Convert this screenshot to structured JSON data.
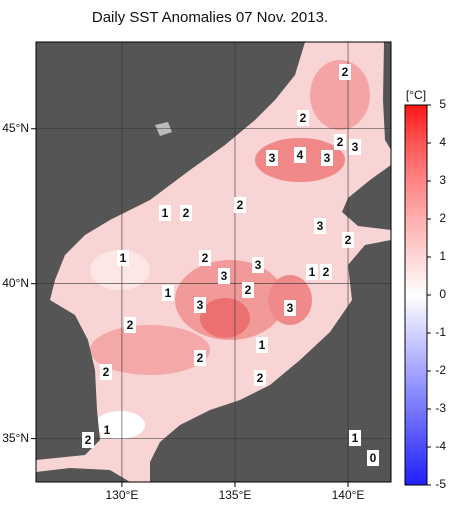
{
  "title": "Daily SST Anomalies 07 Nov. 2013.",
  "map": {
    "xlim": [
      126.2,
      141.9
    ],
    "ylim": [
      33.6,
      47.8
    ],
    "xticks": [
      {
        "value": 130,
        "label": "130°E"
      },
      {
        "value": 135,
        "label": "135°E"
      },
      {
        "value": 140,
        "label": "140°E"
      }
    ],
    "yticks": [
      {
        "value": 35,
        "label": "35°N"
      },
      {
        "value": 40,
        "label": "40°N"
      },
      {
        "value": 45,
        "label": "45°N"
      }
    ],
    "grid": true,
    "contour_labels": [
      2,
      2,
      2,
      3,
      4,
      3,
      3,
      1,
      2,
      2,
      3,
      2,
      1,
      2,
      3,
      1,
      2,
      3,
      1,
      2,
      3,
      3,
      2,
      1,
      2,
      2,
      2,
      1,
      2,
      1,
      0
    ]
  },
  "colorbar": {
    "title": "[°C]",
    "lim": [
      -5,
      5
    ],
    "ticks": [
      -5,
      -4,
      -3,
      -2,
      -1,
      0,
      1,
      2,
      3,
      4,
      5
    ],
    "colors": [
      "#1f1fff",
      "#4b4bff",
      "#7878ff",
      "#a4a4ff",
      "#d2d2ff",
      "#ffffff",
      "#ffd6d6",
      "#ffaeae",
      "#ff8585",
      "#ff5555",
      "#ff1616"
    ]
  }
}
